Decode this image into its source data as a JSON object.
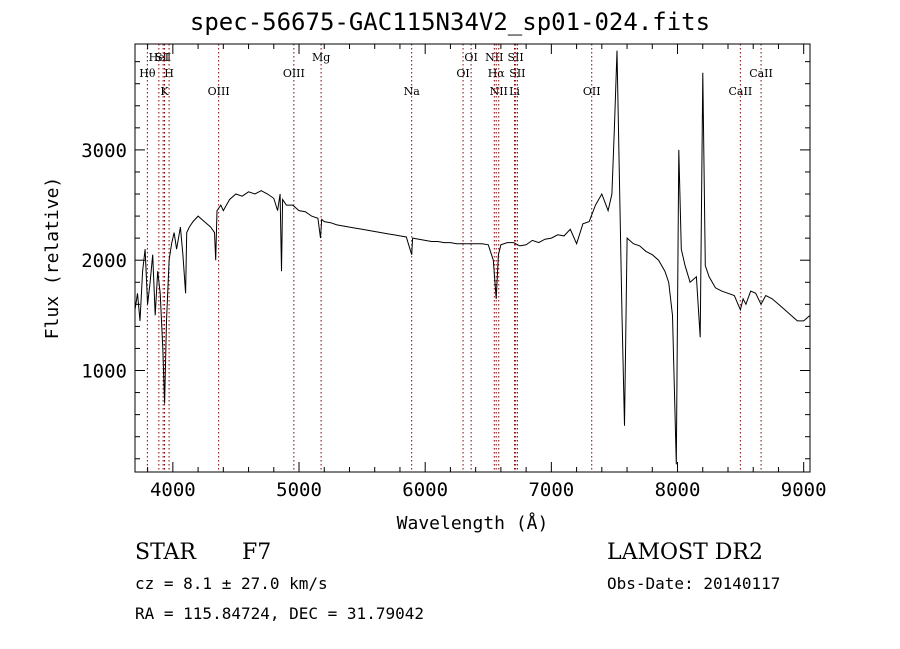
{
  "chart_data": {
    "type": "line",
    "title": "spec-56675-GAC115N34V2_sp01-024.fits",
    "xlabel": "Wavelength (Å)",
    "ylabel": "Flux (relative)",
    "xlim": [
      3700,
      9050
    ],
    "ylim": [
      80,
      3960
    ],
    "xticks": [
      4000,
      5000,
      6000,
      7000,
      8000,
      9000
    ],
    "yticks": [
      1000,
      2000,
      3000
    ],
    "grid": false,
    "line_color": "#000000",
    "marker_color": "#8b0000",
    "x": [
      3700,
      3720,
      3740,
      3760,
      3780,
      3800,
      3820,
      3840,
      3860,
      3880,
      3900,
      3920,
      3935,
      3950,
      3970,
      3990,
      4010,
      4030,
      4060,
      4080,
      4101,
      4110,
      4130,
      4160,
      4200,
      4250,
      4300,
      4330,
      4340,
      4350,
      4380,
      4400,
      4450,
      4500,
      4550,
      4600,
      4650,
      4700,
      4750,
      4800,
      4830,
      4850,
      4861,
      4870,
      4900,
      4950,
      5000,
      5050,
      5100,
      5150,
      5170,
      5180,
      5200,
      5250,
      5300,
      5350,
      5400,
      5450,
      5500,
      5550,
      5600,
      5650,
      5700,
      5750,
      5800,
      5850,
      5893,
      5900,
      5950,
      6000,
      6050,
      6100,
      6150,
      6200,
      6250,
      6300,
      6350,
      6400,
      6450,
      6500,
      6540,
      6563,
      6580,
      6600,
      6650,
      6700,
      6750,
      6800,
      6850,
      6900,
      6950,
      7000,
      7050,
      7100,
      7150,
      7200,
      7250,
      7300,
      7350,
      7400,
      7450,
      7480,
      7500,
      7520,
      7540,
      7560,
      7580,
      7600,
      7650,
      7700,
      7750,
      7800,
      7850,
      7900,
      7930,
      7960,
      7990,
      8010,
      8030,
      8060,
      8100,
      8150,
      8180,
      8200,
      8220,
      8250,
      8300,
      8350,
      8400,
      8450,
      8498,
      8520,
      8542,
      8580,
      8620,
      8662,
      8700,
      8750,
      8800,
      8850,
      8900,
      8950,
      9000,
      9050
    ],
    "values": [
      1550,
      1700,
      1450,
      1900,
      2100,
      1600,
      1800,
      2050,
      1500,
      1900,
      1700,
      1200,
      700,
      1450,
      2000,
      2150,
      2250,
      2100,
      2300,
      2050,
      1700,
      2250,
      2300,
      2350,
      2400,
      2350,
      2300,
      2250,
      2000,
      2450,
      2500,
      2450,
      2550,
      2600,
      2580,
      2620,
      2600,
      2630,
      2600,
      2560,
      2450,
      2600,
      1900,
      2550,
      2500,
      2500,
      2450,
      2440,
      2400,
      2380,
      2200,
      2370,
      2350,
      2340,
      2320,
      2310,
      2300,
      2290,
      2280,
      2270,
      2260,
      2250,
      2240,
      2230,
      2220,
      2210,
      2050,
      2200,
      2190,
      2180,
      2170,
      2170,
      2160,
      2160,
      2150,
      2150,
      2150,
      2150,
      2150,
      2140,
      2000,
      1650,
      2050,
      2140,
      2160,
      2160,
      2130,
      2140,
      2180,
      2160,
      2190,
      2200,
      2230,
      2220,
      2280,
      2150,
      2330,
      2350,
      2500,
      2600,
      2450,
      2600,
      3200,
      3900,
      2700,
      1500,
      500,
      2200,
      2150,
      2130,
      2080,
      2050,
      2000,
      1900,
      1800,
      1500,
      150,
      3000,
      2100,
      1950,
      1800,
      1850,
      1300,
      3700,
      1950,
      1850,
      1750,
      1720,
      1700,
      1680,
      1550,
      1650,
      1600,
      1720,
      1700,
      1600,
      1680,
      1650,
      1600,
      1550,
      1500,
      1450,
      1450,
      1500
    ],
    "line_markers": [
      {
        "label": "Hθ",
        "x": 3798,
        "row": 2
      },
      {
        "label": "HeI",
        "x": 3889,
        "row": 1
      },
      {
        "label": "SII",
        "x": 3923,
        "row": 1
      },
      {
        "label": "H",
        "x": 3970,
        "row": 2
      },
      {
        "label": "K",
        "x": 3934,
        "row": 3
      },
      {
        "label": "OIII",
        "x": 4363,
        "row": 3
      },
      {
        "label": "OIII",
        "x": 4959,
        "row": 2
      },
      {
        "label": "Mg",
        "x": 5175,
        "row": 1
      },
      {
        "label": "Na",
        "x": 5893,
        "row": 3
      },
      {
        "label": "OI",
        "x": 6300,
        "row": 2
      },
      {
        "label": "OI",
        "x": 6364,
        "row": 1
      },
      {
        "label": "NII",
        "x": 6548,
        "row": 1
      },
      {
        "label": "Hα",
        "x": 6563,
        "row": 2
      },
      {
        "label": "NII",
        "x": 6583,
        "row": 3
      },
      {
        "label": "SII",
        "x": 6717,
        "row": 1
      },
      {
        "label": "SII",
        "x": 6731,
        "row": 2
      },
      {
        "label": "Li",
        "x": 6708,
        "row": 3
      },
      {
        "label": "OII",
        "x": 7320,
        "row": 3
      },
      {
        "label": "CaII",
        "x": 8498,
        "row": 3
      },
      {
        "label": "CaII",
        "x": 8662,
        "row": 2
      }
    ]
  },
  "info": {
    "object_class": "STAR",
    "subclass": "F7",
    "survey": "LAMOST DR2",
    "redshift": "cz = 8.1 ± 27.0 km/s",
    "obs_date": "Obs-Date: 20140117",
    "coords": "RA = 115.84724, DEC =  31.79042"
  }
}
